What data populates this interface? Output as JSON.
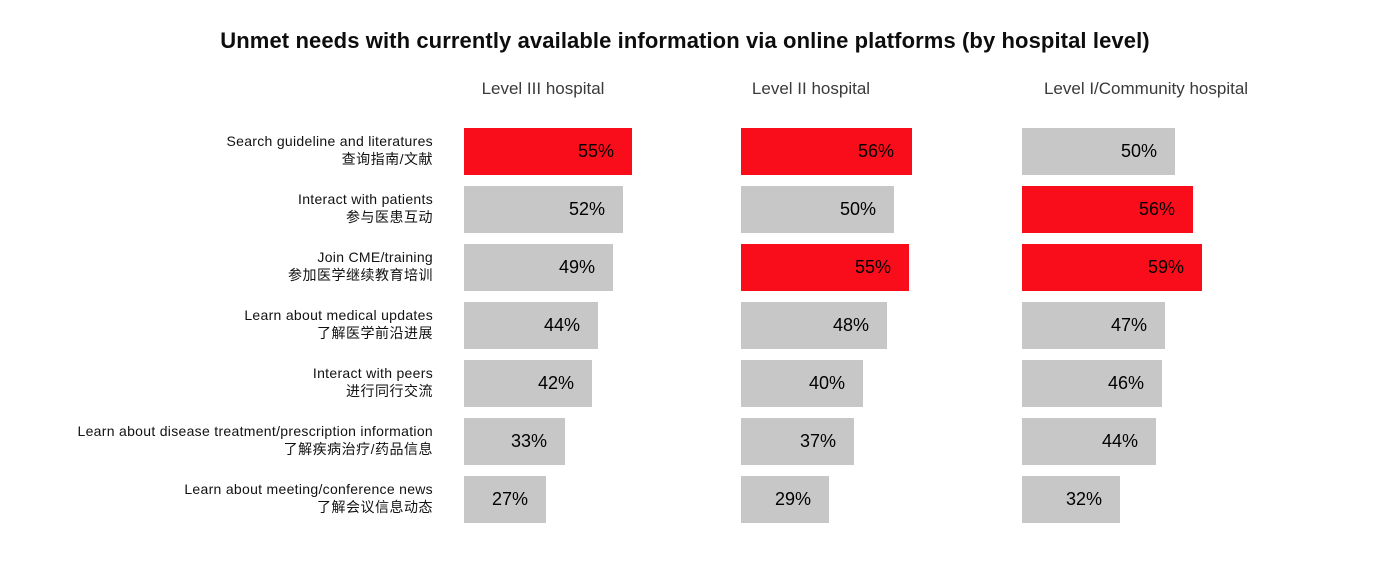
{
  "title": "Unmet needs with currently available information via online platforms (by hospital level)",
  "chart_data": {
    "type": "bar",
    "orientation": "horizontal",
    "title": "Unmet needs with currently available information via online platforms (by hospital level)",
    "value_suffix": "%",
    "xlim": [
      0,
      100
    ],
    "grid": false,
    "legend": "none",
    "categories_en": [
      "Search guideline and literatures",
      "Interact with patients",
      "Join CME/training",
      "Learn about medical updates",
      "Interact with peers",
      "Learn about disease treatment/prescription information",
      "Learn about meeting/conference news"
    ],
    "categories_zh": [
      "查询指南/文献",
      "参与医患互动",
      "参加医学继续教育培训",
      "了解医学前沿进展",
      "进行同行交流",
      "了解疾病治疗/药品信息",
      "了解会议信息动态"
    ],
    "series": [
      {
        "name": "Level III hospital",
        "values": [
          55,
          52,
          49,
          44,
          42,
          33,
          27
        ],
        "highlighted": [
          true,
          false,
          false,
          false,
          false,
          false,
          false
        ]
      },
      {
        "name": "Level II hospital",
        "values": [
          56,
          50,
          55,
          48,
          40,
          37,
          29
        ],
        "highlighted": [
          true,
          false,
          true,
          false,
          false,
          false,
          false
        ]
      },
      {
        "name": "Level I/Community  hospital",
        "values": [
          50,
          56,
          59,
          47,
          46,
          44,
          32
        ],
        "highlighted": [
          false,
          true,
          true,
          false,
          false,
          false,
          false
        ]
      }
    ],
    "colors": {
      "highlight": "#FA0D1B",
      "default": "#C7C7C7",
      "text": "#000000"
    }
  }
}
